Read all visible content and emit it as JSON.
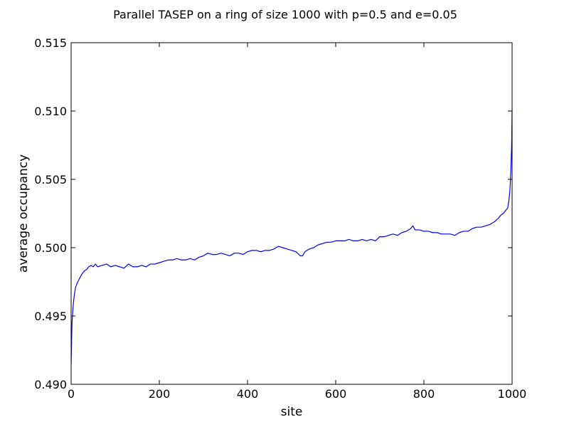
{
  "chart_data": {
    "type": "line",
    "title": "Parallel TASEP on a ring of size 1000 with p=0.5 and e=0.05",
    "xlabel": "site",
    "ylabel": "average occupancy",
    "xlim": [
      0,
      1000
    ],
    "ylim": [
      0.49,
      0.515
    ],
    "xticks": [
      "0",
      "200",
      "400",
      "600",
      "800",
      "1000"
    ],
    "yticks": [
      "0.490",
      "0.495",
      "0.500",
      "0.505",
      "0.510",
      "0.515"
    ],
    "grid": false,
    "legend": "none",
    "series": [
      {
        "color": "#0000ff",
        "x": [
          0,
          2,
          4,
          6,
          8,
          10,
          15,
          20,
          25,
          30,
          35,
          40,
          45,
          50,
          55,
          60,
          70,
          80,
          90,
          100,
          110,
          120,
          130,
          140,
          150,
          160,
          170,
          180,
          190,
          200,
          210,
          220,
          230,
          240,
          250,
          260,
          270,
          280,
          290,
          300,
          310,
          320,
          330,
          340,
          350,
          360,
          370,
          380,
          390,
          400,
          410,
          420,
          430,
          440,
          450,
          460,
          470,
          480,
          490,
          500,
          510,
          520,
          525,
          530,
          540,
          550,
          560,
          570,
          580,
          590,
          600,
          610,
          620,
          630,
          640,
          650,
          660,
          670,
          680,
          690,
          700,
          710,
          720,
          730,
          740,
          750,
          760,
          770,
          775,
          780,
          790,
          800,
          810,
          820,
          830,
          840,
          850,
          860,
          870,
          880,
          890,
          900,
          910,
          920,
          930,
          940,
          950,
          960,
          970,
          975,
          980,
          985,
          990,
          993,
          995,
          997,
          999,
          1000
        ],
        "values": [
          0.4915,
          0.4945,
          0.4955,
          0.4962,
          0.4967,
          0.4971,
          0.4975,
          0.4978,
          0.4981,
          0.4983,
          0.4984,
          0.4986,
          0.4987,
          0.4986,
          0.4988,
          0.4986,
          0.4987,
          0.4988,
          0.4986,
          0.4987,
          0.4986,
          0.4985,
          0.4988,
          0.4986,
          0.4986,
          0.4987,
          0.4986,
          0.4988,
          0.4988,
          0.4989,
          0.499,
          0.4991,
          0.4991,
          0.4992,
          0.4991,
          0.4991,
          0.4992,
          0.4991,
          0.4993,
          0.4994,
          0.4996,
          0.4995,
          0.4995,
          0.4996,
          0.4995,
          0.4994,
          0.4996,
          0.4996,
          0.4995,
          0.4997,
          0.4998,
          0.4998,
          0.4997,
          0.4998,
          0.4998,
          0.4999,
          0.5001,
          0.5,
          0.4999,
          0.4998,
          0.4997,
          0.4994,
          0.4994,
          0.4997,
          0.4999,
          0.5,
          0.5002,
          0.5003,
          0.5004,
          0.5004,
          0.5005,
          0.5005,
          0.5005,
          0.5006,
          0.5005,
          0.5005,
          0.5006,
          0.5005,
          0.5006,
          0.5005,
          0.5008,
          0.5008,
          0.5009,
          0.501,
          0.5009,
          0.5011,
          0.5012,
          0.5014,
          0.5016,
          0.5013,
          0.5013,
          0.5012,
          0.5012,
          0.5011,
          0.5011,
          0.501,
          0.501,
          0.501,
          0.5009,
          0.5011,
          0.5012,
          0.5012,
          0.5014,
          0.5015,
          0.5015,
          0.5016,
          0.5017,
          0.5019,
          0.5022,
          0.5024,
          0.5025,
          0.5027,
          0.5029,
          0.5035,
          0.5042,
          0.5055,
          0.5075,
          0.5101
        ]
      }
    ]
  }
}
